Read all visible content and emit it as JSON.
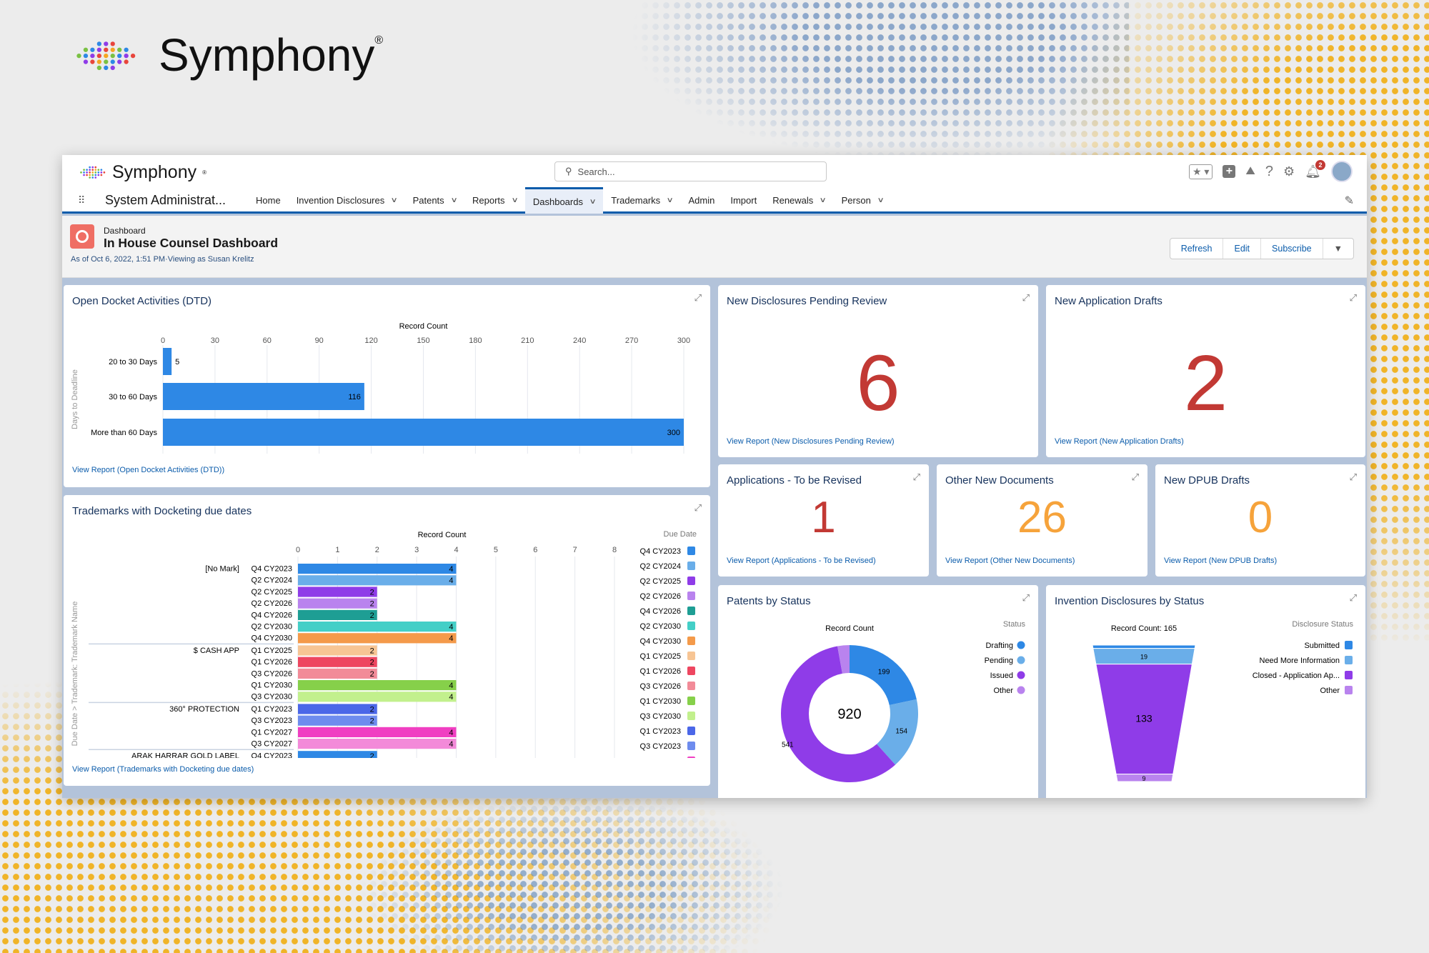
{
  "brand": {
    "name": "Symphony",
    "reg": "®"
  },
  "header": {
    "app_name": "System Administrat...",
    "search_placeholder": "Search...",
    "notification_count": "2",
    "nav": [
      {
        "label": "Home",
        "dropdown": false
      },
      {
        "label": "Invention Disclosures",
        "dropdown": true
      },
      {
        "label": "Patents",
        "dropdown": true
      },
      {
        "label": "Reports",
        "dropdown": true
      },
      {
        "label": "Dashboards",
        "dropdown": true,
        "active": true
      },
      {
        "label": "Trademarks",
        "dropdown": true
      },
      {
        "label": "Admin",
        "dropdown": false
      },
      {
        "label": "Import",
        "dropdown": false
      },
      {
        "label": "Renewals",
        "dropdown": true
      },
      {
        "label": "Person",
        "dropdown": true
      }
    ]
  },
  "dashboard": {
    "type_label": "Dashboard",
    "title": "In House Counsel Dashboard",
    "meta": "As of Oct 6, 2022, 1:51 PM·Viewing as Susan Krelitz",
    "buttons": {
      "refresh": "Refresh",
      "edit": "Edit",
      "subscribe": "Subscribe"
    }
  },
  "colors": {
    "accent": "#0b5cab",
    "metric_red": "#c23934",
    "metric_orange": "#f6a33b",
    "bar_blue": "#2e88e5"
  },
  "metrics": [
    {
      "title": "New Disclosures Pending Review",
      "value": "6",
      "link": "View Report (New Disclosures Pending Review)",
      "color": "#c23934"
    },
    {
      "title": "New Application Drafts",
      "value": "2",
      "link": "View Report (New Application Drafts)",
      "color": "#c23934"
    },
    {
      "title": "Applications - To be Revised",
      "value": "1",
      "link": "View Report (Applications - To be Revised)",
      "color": "#c23934"
    },
    {
      "title": "Other New Documents",
      "value": "26",
      "link": "View Report (Other New Documents)",
      "color": "#f6a33b"
    },
    {
      "title": "New DPUB Drafts",
      "value": "0",
      "link": "View Report (New DPUB Drafts)",
      "color": "#f6a33b"
    }
  ],
  "chart_data": [
    {
      "type": "bar",
      "orientation": "horizontal",
      "title": "Open Docket Activities (DTD)",
      "xlabel": "Record Count",
      "ylabel": "Days to Deadline",
      "xlim": [
        0,
        300
      ],
      "xticks": [
        0,
        30,
        60,
        90,
        120,
        150,
        180,
        210,
        240,
        270,
        300
      ],
      "grid": true,
      "categories": [
        "20 to 30 Days",
        "30 to 60 Days",
        "More than 60 Days"
      ],
      "values": [
        5,
        116,
        300
      ],
      "link": "View Report (Open Docket Activities (DTD))"
    },
    {
      "type": "bar",
      "orientation": "horizontal",
      "title": "Trademarks with Docketing due dates",
      "xlabel": "Record Count",
      "ylabel": "Due Date > Trademark: Trademark Name",
      "legend_title": "Due Date",
      "legend_position": "right",
      "xlim": [
        0,
        8
      ],
      "xticks": [
        0,
        1,
        2,
        3,
        4,
        5,
        6,
        7,
        8
      ],
      "grid": true,
      "link": "View Report (Trademarks with Docketing due dates)",
      "legend": [
        {
          "name": "Q4 CY2023",
          "color": "#2e88e5"
        },
        {
          "name": "Q2 CY2024",
          "color": "#6aaee9"
        },
        {
          "name": "Q2 CY2025",
          "color": "#8f3ce8"
        },
        {
          "name": "Q2 CY2026",
          "color": "#b983ee"
        },
        {
          "name": "Q4 CY2026",
          "color": "#1e9e94"
        },
        {
          "name": "Q2 CY2030",
          "color": "#44cfc7"
        },
        {
          "name": "Q4 CY2030",
          "color": "#f49a4a"
        },
        {
          "name": "Q1 CY2025",
          "color": "#f7c594"
        },
        {
          "name": "Q1 CY2026",
          "color": "#ee4660"
        },
        {
          "name": "Q3 CY2026",
          "color": "#f28b98"
        },
        {
          "name": "Q1 CY2030",
          "color": "#86d04a"
        },
        {
          "name": "Q3 CY2030",
          "color": "#c2f08d"
        },
        {
          "name": "Q1 CY2023",
          "color": "#4b67e8"
        },
        {
          "name": "Q3 CY2023",
          "color": "#6e8cee"
        },
        {
          "name": "Q1 CY2027",
          "color": "#f03fc2"
        }
      ],
      "groups": [
        {
          "name": "[No Mark]",
          "rows": [
            [
              "Q4 CY2023",
              4
            ],
            [
              "Q2 CY2024",
              4
            ],
            [
              "Q2 CY2025",
              2
            ],
            [
              "Q2 CY2026",
              2
            ],
            [
              "Q4 CY2026",
              2
            ],
            [
              "Q2 CY2030",
              4
            ],
            [
              "Q4 CY2030",
              4
            ]
          ]
        },
        {
          "name": "$ CASH APP",
          "rows": [
            [
              "Q1 CY2025",
              2
            ],
            [
              "Q1 CY2026",
              2
            ],
            [
              "Q3 CY2026",
              2
            ],
            [
              "Q1 CY2030",
              4
            ],
            [
              "Q3 CY2030",
              4
            ]
          ]
        },
        {
          "name": "360° PROTECTION",
          "rows": [
            [
              "Q1 CY2023",
              2
            ],
            [
              "Q3 CY2023",
              2
            ],
            [
              "Q1 CY2027",
              4
            ],
            [
              "Q3 CY2027",
              4
            ]
          ]
        },
        {
          "name": "ARAK HARRAR GOLD LABEL",
          "rows": [
            [
              "Q4 CY2023",
              2
            ]
          ]
        }
      ]
    },
    {
      "type": "pie",
      "donut": true,
      "title": "Patents by Status",
      "subtitle": "Record Count",
      "total": "920",
      "legend_title": "Status",
      "legend_position": "right",
      "slices": [
        {
          "name": "Drafting",
          "value": 199,
          "color": "#2e88e5"
        },
        {
          "name": "Pending",
          "value": 154,
          "color": "#6aaee9"
        },
        {
          "name": "Issued",
          "value": 541,
          "color": "#8f3ce8"
        },
        {
          "name": "Other",
          "value": 26,
          "color": "#b983ee"
        }
      ]
    },
    {
      "type": "funnel",
      "title": "Invention Disclosures by Status",
      "subtitle": "Record Count: 165",
      "legend_title": "Disclosure Status",
      "legend_position": "right",
      "stages": [
        {
          "name": "Submitted",
          "value": 4,
          "color": "#2e88e5"
        },
        {
          "name": "Need More Information",
          "value": 19,
          "color": "#6aaee9"
        },
        {
          "name": "Closed - Application Ap...",
          "value": 133,
          "color": "#8f3ce8"
        },
        {
          "name": "Other",
          "value": 9,
          "color": "#b983ee"
        }
      ]
    }
  ]
}
